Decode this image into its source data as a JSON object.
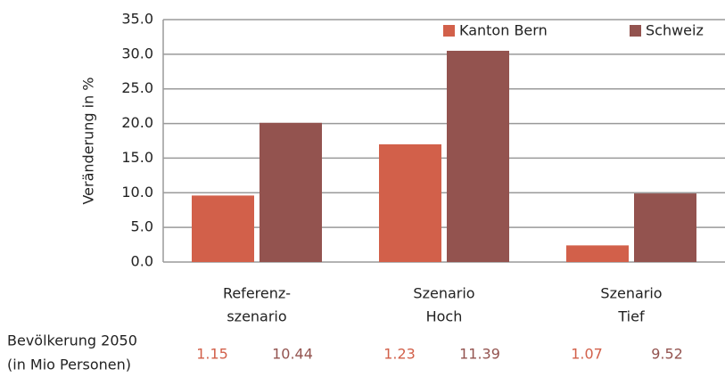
{
  "chart_data": {
    "type": "bar",
    "y_label": "Veränderung in %",
    "categories": [
      [
        "Referenz-",
        "szenario"
      ],
      [
        "Szenario",
        "Hoch"
      ],
      [
        "Szenario",
        "Tief"
      ]
    ],
    "series": [
      {
        "name": "Kanton Bern",
        "color": "#d2604a",
        "values": [
          9.6,
          17.0,
          2.4
        ]
      },
      {
        "name": "Schweiz",
        "color": "#93534f",
        "values": [
          20.1,
          30.5,
          9.9
        ]
      }
    ],
    "ylim": [
      0,
      35
    ],
    "yticks": [
      {
        "value": 0,
        "label": "0.0"
      },
      {
        "value": 5,
        "label": "5.0"
      },
      {
        "value": 10,
        "label": "10.0"
      },
      {
        "value": 15,
        "label": "15.0"
      },
      {
        "value": 20,
        "label": "20.0"
      },
      {
        "value": 25,
        "label": "25.0"
      },
      {
        "value": 30,
        "label": "30.0"
      },
      {
        "value": 35,
        "label": "35.0"
      }
    ],
    "grid": true,
    "legend": "top-right",
    "population": {
      "label": [
        "Bevölkerung 2050",
        "(in Mio Personen)"
      ],
      "values": [
        [
          1.15,
          1.23,
          1.07
        ],
        [
          10.44,
          11.39,
          9.52
        ]
      ]
    }
  }
}
